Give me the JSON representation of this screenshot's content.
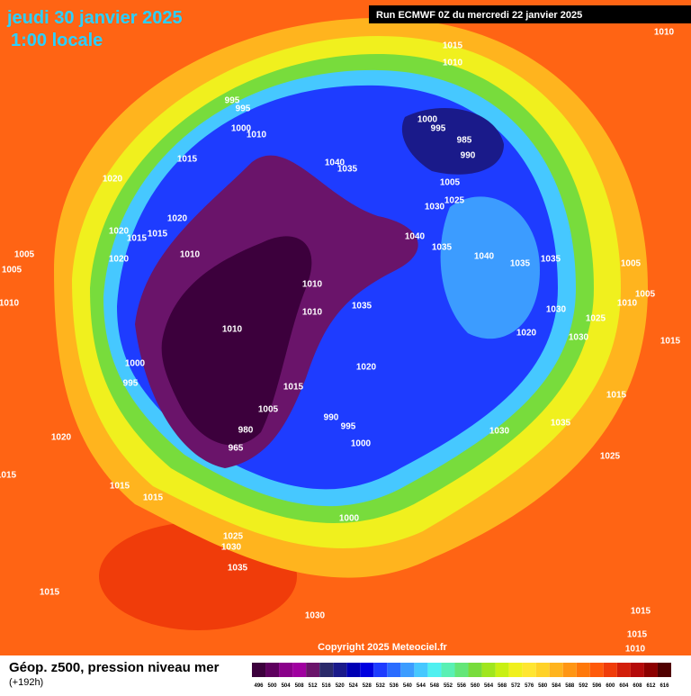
{
  "header": {
    "date": "jeudi 30 janvier 2025",
    "time": "1:00 locale",
    "run": "Run ECMWF 0Z du mercredi 22 janvier 2025"
  },
  "map": {
    "isobar_labels": [
      1010,
      1015,
      1010,
      995,
      995,
      1000,
      1010,
      1015,
      1000,
      995,
      985,
      990,
      1040,
      1035,
      1020,
      1005,
      1025,
      1030,
      1020,
      1020,
      1015,
      1015,
      1040,
      1035,
      1010,
      1040,
      1005,
      1020,
      1035,
      1035,
      1005,
      1005,
      1010,
      1035,
      1010,
      1030,
      1025,
      1010,
      1005,
      1010,
      1010,
      1020,
      1030,
      1015,
      1000,
      1020,
      995,
      1015,
      1015,
      1005,
      990,
      995,
      1035,
      980,
      1030,
      1000,
      1020,
      965,
      1025,
      1015,
      1015,
      1015,
      1000,
      1025,
      1030,
      1035,
      1015,
      1030,
      1015,
      1015,
      1010
    ],
    "copyright": "Copyright 2025 Meteociel.fr"
  },
  "footer": {
    "title": "Géop. z500, pression niveau mer",
    "lead": "(+192h)"
  },
  "legend": {
    "levels": [
      496,
      500,
      504,
      508,
      512,
      516,
      520,
      524,
      528,
      532,
      536,
      540,
      544,
      548,
      552,
      556,
      560,
      564,
      568,
      572,
      576,
      580,
      584,
      588,
      592,
      596,
      600,
      604,
      608,
      612,
      616
    ],
    "colors": [
      "#3c003c",
      "#5e005e",
      "#8a008a",
      "#a000a0",
      "#6a146a",
      "#2a2a6a",
      "#1a1a8a",
      "#0000b4",
      "#0000e0",
      "#1e3cff",
      "#2a6cff",
      "#3c9cff",
      "#46c8ff",
      "#50f0f0",
      "#5af0b4",
      "#64e678",
      "#78dc3c",
      "#a0e61e",
      "#c8f014",
      "#f0f01e",
      "#ffe632",
      "#ffd228",
      "#ffb41e",
      "#ff9614",
      "#ff780a",
      "#ff5a0a",
      "#f03c0a",
      "#d21e0a",
      "#b40a0a",
      "#8c0000",
      "#500000"
    ]
  }
}
